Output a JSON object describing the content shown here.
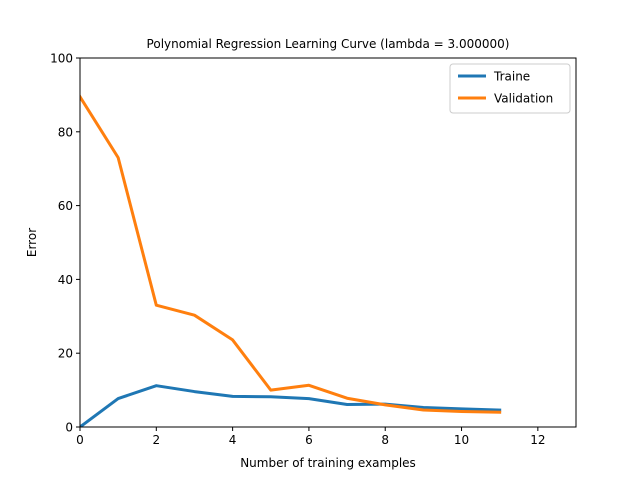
{
  "chart_data": {
    "type": "line",
    "title": "Polynomial Regression Learning Curve (lambda = 3.000000)",
    "xlabel": "Number of training examples",
    "ylabel": "Error",
    "xlim": [
      0,
      13
    ],
    "ylim": [
      0,
      100
    ],
    "xticks": [
      0,
      2,
      4,
      6,
      8,
      10,
      12
    ],
    "yticks": [
      0,
      20,
      40,
      60,
      80,
      100
    ],
    "grid": false,
    "legend_position": "top-right",
    "x": [
      0,
      1,
      2,
      3,
      4,
      5,
      6,
      7,
      8,
      9,
      10,
      11
    ],
    "series": [
      {
        "name": "Traine",
        "color": "#1f77b4",
        "values": [
          0.0,
          7.7,
          11.2,
          9.6,
          8.3,
          8.2,
          7.7,
          6.1,
          6.2,
          5.3,
          4.9,
          4.6
        ]
      },
      {
        "name": "Validation",
        "color": "#ff7f0e",
        "values": [
          89.5,
          73.0,
          33.0,
          30.3,
          23.6,
          10.0,
          11.3,
          7.8,
          6.0,
          4.6,
          4.2,
          4.0
        ]
      }
    ]
  }
}
